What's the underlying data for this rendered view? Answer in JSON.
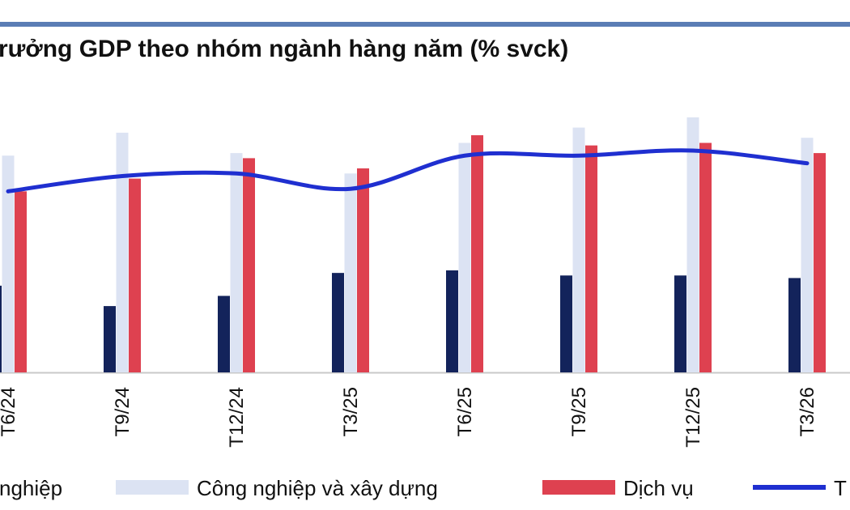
{
  "chart_data": {
    "type": "bar",
    "title": "rưởng GDP theo nhóm ngành hàng năm (% svck)",
    "categories": [
      "T6/24",
      "T9/24",
      "T12/24",
      "T3/25",
      "T6/25",
      "T9/25",
      "T12/25",
      "T3/26"
    ],
    "ylim": [
      0,
      14
    ],
    "series": [
      {
        "name": "nghiệp",
        "color": "#13235b",
        "values": [
          3.4,
          2.6,
          3.0,
          3.9,
          4.0,
          3.8,
          3.8,
          3.7
        ]
      },
      {
        "name": "Công nghiệp và xây dựng",
        "color": "#dce3f3",
        "values": [
          8.5,
          9.4,
          8.6,
          7.8,
          9.0,
          9.6,
          10.0,
          9.2
        ]
      },
      {
        "name": "Dịch vụ",
        "color": "#de4150",
        "values": [
          7.1,
          7.6,
          8.4,
          8.0,
          9.3,
          8.9,
          9.0,
          8.6
        ]
      },
      {
        "name": "T",
        "color": "#1f2fd0",
        "type": "line",
        "values": [
          7.1,
          7.7,
          7.8,
          7.2,
          8.5,
          8.5,
          8.7,
          8.2
        ]
      }
    ]
  }
}
